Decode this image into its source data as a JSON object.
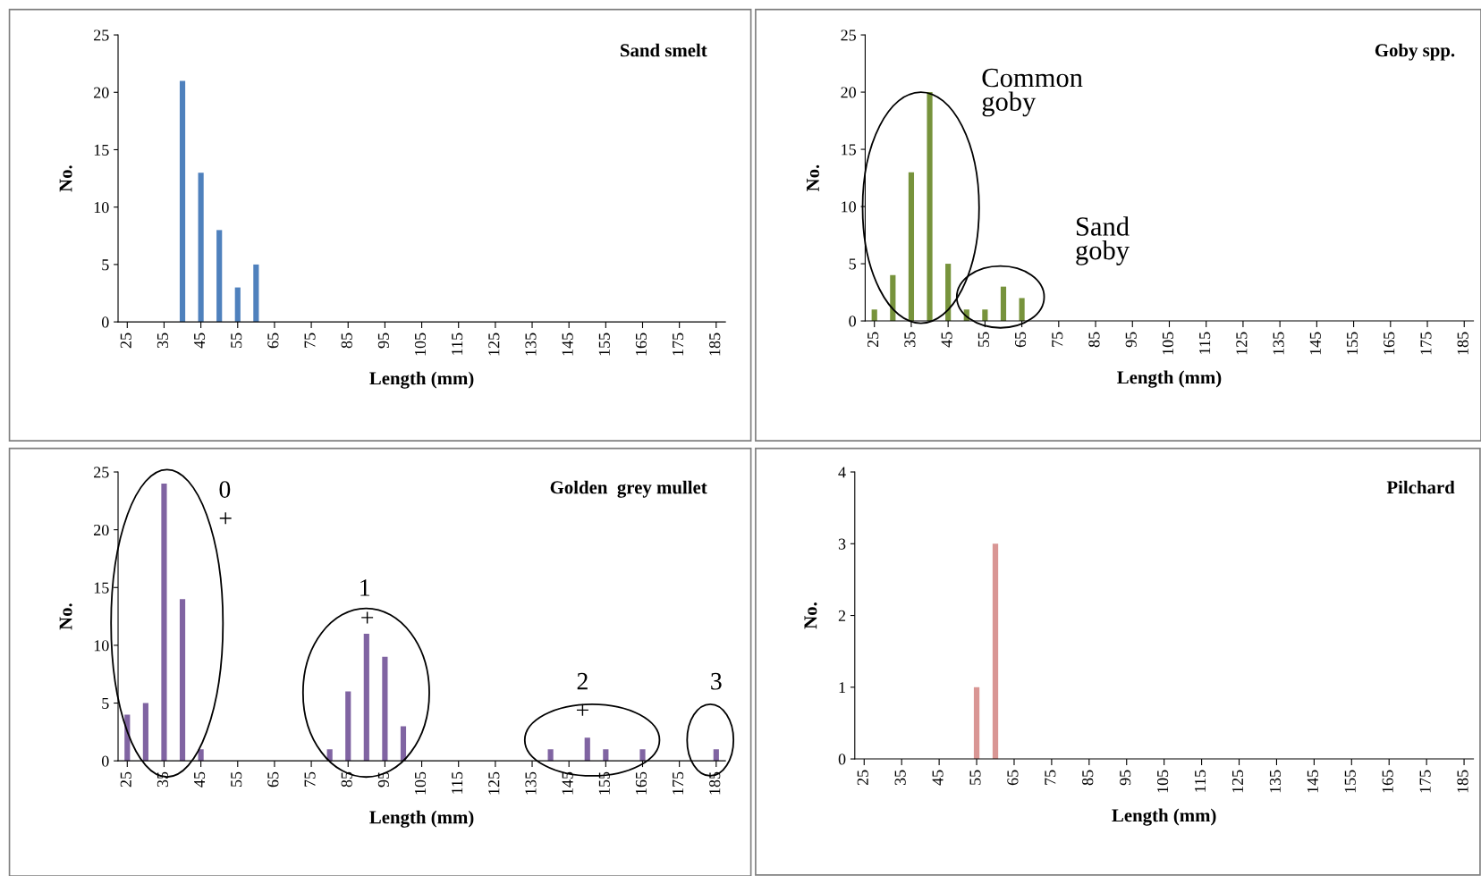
{
  "chart_data": [
    {
      "type": "bar",
      "title": "Sand smelt",
      "xlabel": "Length (mm)",
      "ylabel": "No.",
      "x": [
        40,
        45,
        50,
        55,
        60
      ],
      "values": [
        21,
        13,
        8,
        3,
        5
      ],
      "color": "#4f81bd",
      "xlim": [
        22.5,
        187.5
      ],
      "xticks": [
        25,
        35,
        45,
        55,
        65,
        75,
        85,
        95,
        105,
        115,
        125,
        135,
        145,
        155,
        165,
        175,
        185
      ],
      "ylim": [
        0,
        25
      ],
      "yticks": [
        0,
        5,
        10,
        15,
        20,
        25
      ],
      "grid": false,
      "legend": false
    },
    {
      "type": "bar",
      "title": "Goby spp.",
      "xlabel": "Length (mm)",
      "ylabel": "No.",
      "x": [
        25,
        30,
        35,
        40,
        45,
        50,
        55,
        60,
        65
      ],
      "values": [
        1,
        4,
        13,
        20,
        5,
        1,
        1,
        3,
        2
      ],
      "color": "#77933c",
      "xlim": [
        22.5,
        187.5
      ],
      "xticks": [
        25,
        35,
        45,
        55,
        65,
        75,
        85,
        95,
        105,
        115,
        125,
        135,
        145,
        155,
        165,
        175,
        185
      ],
      "ylim": [
        0,
        25
      ],
      "yticks": [
        0,
        5,
        10,
        15,
        20,
        25
      ],
      "grid": false,
      "legend": false,
      "annotations": [
        "Common\ngoby",
        "Sand\ngoby"
      ]
    },
    {
      "type": "bar",
      "title": "Golden  grey mullet",
      "xlabel": "Length (mm)",
      "ylabel": "No.",
      "x": [
        25,
        30,
        35,
        40,
        45,
        80,
        85,
        90,
        95,
        100,
        140,
        150,
        155,
        165,
        185
      ],
      "values": [
        4,
        5,
        24,
        14,
        1,
        1,
        6,
        11,
        9,
        3,
        1,
        2,
        1,
        1,
        1
      ],
      "color": "#8064a2",
      "xlim": [
        22.5,
        187.5
      ],
      "xticks": [
        25,
        35,
        45,
        55,
        65,
        75,
        85,
        95,
        105,
        115,
        125,
        135,
        145,
        155,
        165,
        175,
        185
      ],
      "ylim": [
        0,
        25
      ],
      "yticks": [
        0,
        5,
        10,
        15,
        20,
        25
      ],
      "grid": false,
      "legend": false,
      "annotations": [
        "0",
        "+",
        "1",
        "+",
        "2",
        "+",
        "3"
      ]
    },
    {
      "type": "bar",
      "title": "Pilchard",
      "xlabel": "Length (mm)",
      "ylabel": "No.",
      "x": [
        55,
        60
      ],
      "values": [
        1,
        3
      ],
      "color": "#d99694",
      "xlim": [
        22.5,
        187.5
      ],
      "xticks": [
        25,
        35,
        45,
        55,
        65,
        75,
        85,
        95,
        105,
        115,
        125,
        135,
        145,
        155,
        165,
        175,
        185
      ],
      "ylim": [
        0,
        4
      ],
      "yticks": [
        0,
        1,
        2,
        3,
        4
      ],
      "grid": false,
      "legend": false
    }
  ]
}
